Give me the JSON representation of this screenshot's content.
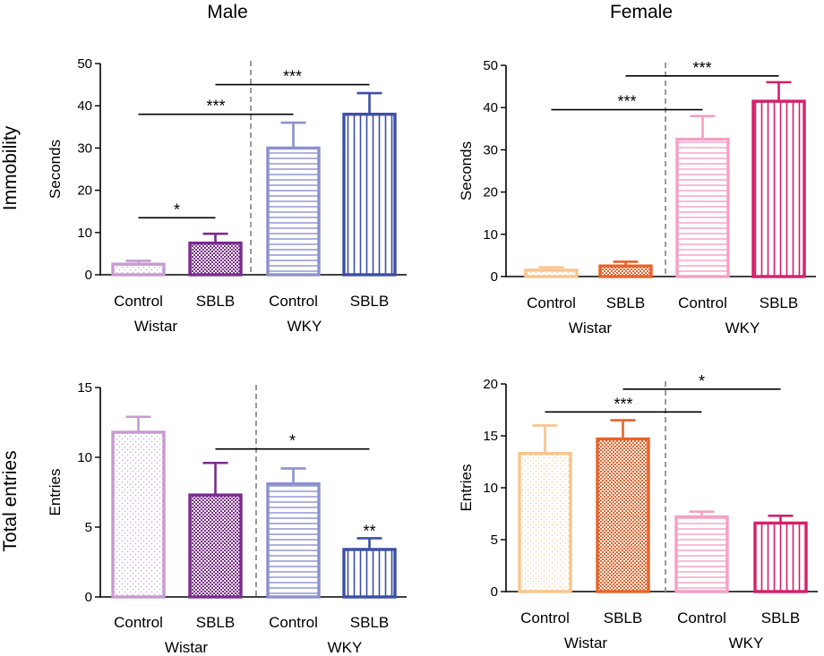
{
  "column_titles": [
    "Male",
    "Female"
  ],
  "row_labels": [
    "Immobility",
    "Total entries"
  ],
  "colors": {
    "wistar_control_m": "#c79ad0",
    "wistar_sblb_m": "#7b2c8e",
    "wky_control_m": "#8b90cf",
    "wky_sblb_m": "#3b4fa6",
    "wistar_control_f": "#f9c48c",
    "wistar_sblb_f": "#e8632a",
    "wky_control_f": "#f4a0c4",
    "wky_sblb_f": "#d4206a",
    "divider": "#9a9a9a"
  },
  "chart_data": [
    {
      "id": "male-immobility",
      "type": "bar",
      "title": "Male",
      "ylabel": "Seconds",
      "ylim": [
        0,
        50
      ],
      "yticks": [
        0,
        10,
        20,
        30,
        40,
        50
      ],
      "categories": [
        "Control",
        "SBLB",
        "Control",
        "SBLB"
      ],
      "groups": [
        "Wistar",
        "WKY"
      ],
      "values": [
        2.5,
        7.5,
        30,
        38
      ],
      "errors": [
        0.8,
        2.2,
        6,
        5
      ],
      "patterns": [
        "dots",
        "checks",
        "hlines",
        "vlines"
      ],
      "color_keys": [
        "wistar_control_m",
        "wistar_sblb_m",
        "wky_control_m",
        "wky_sblb_m"
      ],
      "significance": [
        {
          "from": 0,
          "to": 1,
          "y": 13.5,
          "label": "*"
        },
        {
          "from": 0,
          "to": 2,
          "y": 38,
          "label": "***"
        },
        {
          "from": 1,
          "to": 3,
          "y": 45,
          "label": "***"
        }
      ],
      "bar_labels": []
    },
    {
      "id": "female-immobility",
      "type": "bar",
      "title": "Female",
      "ylabel": "Seconds",
      "ylim": [
        0,
        50
      ],
      "yticks": [
        0,
        10,
        20,
        30,
        40,
        50
      ],
      "categories": [
        "Control",
        "SBLB",
        "Control",
        "SBLB"
      ],
      "groups": [
        "Wistar",
        "WKY"
      ],
      "values": [
        1.5,
        2.5,
        32.5,
        41.5
      ],
      "errors": [
        0.7,
        1,
        5.5,
        4.5
      ],
      "patterns": [
        "dots",
        "checks",
        "hlines",
        "vlines"
      ],
      "color_keys": [
        "wistar_control_f",
        "wistar_sblb_f",
        "wky_control_f",
        "wky_sblb_f"
      ],
      "significance": [
        {
          "from": 0,
          "to": 2,
          "y": 39.5,
          "label": "***"
        },
        {
          "from": 1,
          "to": 3,
          "y": 47.5,
          "label": "***"
        }
      ],
      "bar_labels": []
    },
    {
      "id": "male-entries",
      "type": "bar",
      "title": "",
      "ylabel": "Entries",
      "ylim": [
        0,
        15
      ],
      "yticks": [
        0,
        5,
        10,
        15
      ],
      "categories": [
        "Control",
        "SBLB",
        "Control",
        "SBLB"
      ],
      "groups": [
        "Wistar",
        "WKY"
      ],
      "values": [
        11.8,
        7.3,
        8.1,
        3.4
      ],
      "errors": [
        1.1,
        2.3,
        1.1,
        0.8
      ],
      "patterns": [
        "dots",
        "checks",
        "hlines",
        "vlines"
      ],
      "color_keys": [
        "wistar_control_m",
        "wistar_sblb_m",
        "wky_control_m",
        "wky_sblb_m"
      ],
      "significance": [
        {
          "from": 1,
          "to": 3,
          "y": 10.6,
          "label": "*"
        }
      ],
      "bar_labels": [
        {
          "index": 3,
          "label": "**"
        }
      ]
    },
    {
      "id": "female-entries",
      "type": "bar",
      "title": "",
      "ylabel": "Entries",
      "ylim": [
        0,
        20
      ],
      "yticks": [
        0,
        5,
        10,
        15,
        20
      ],
      "categories": [
        "Control",
        "SBLB",
        "Control",
        "SBLB"
      ],
      "groups": [
        "Wistar",
        "WKY"
      ],
      "values": [
        13.3,
        14.7,
        7.2,
        6.6
      ],
      "errors": [
        2.7,
        1.8,
        0.5,
        0.7
      ],
      "patterns": [
        "dots",
        "checks",
        "hlines",
        "vlines"
      ],
      "color_keys": [
        "wistar_control_f",
        "wistar_sblb_f",
        "wky_control_f",
        "wky_sblb_f"
      ],
      "significance": [
        {
          "from": 0,
          "to": 2,
          "y": 17.3,
          "label": "***"
        },
        {
          "from": 1,
          "to": 3,
          "y": 19.5,
          "label": "*"
        }
      ],
      "bar_labels": []
    }
  ]
}
